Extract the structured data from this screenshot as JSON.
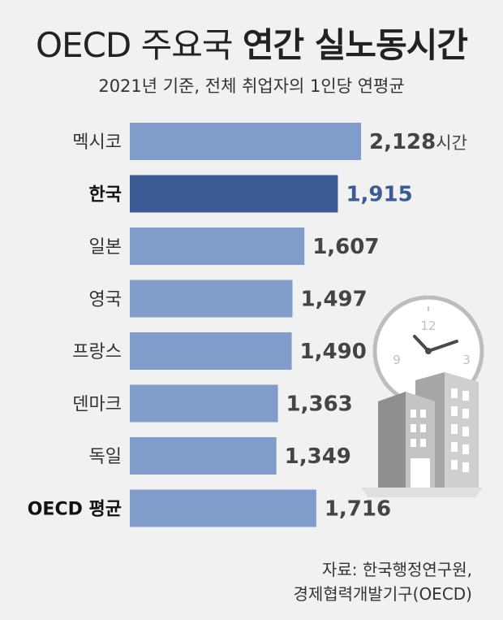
{
  "title_light": "OECD 주요국",
  "title_bold": "연간 실노동시간",
  "subtitle": "2021년 기준, 전체 취업자의 1인당 연평균",
  "source_line1": "자료: 한국행정연구원,",
  "source_line2": "경제협력개발기구(OECD)",
  "colors": {
    "bar": "#7f9ccb",
    "highlight_bar": "#3c5a94",
    "highlight_text": "#3c5a94",
    "label": "#333333",
    "value": "#444444"
  },
  "chart_data": {
    "type": "bar",
    "orientation": "horizontal",
    "categories": [
      "멕시코",
      "한국",
      "일본",
      "영국",
      "프랑스",
      "덴마크",
      "독일",
      "OECD 평균"
    ],
    "values": [
      2128,
      1915,
      1607,
      1497,
      1490,
      1363,
      1349,
      1716
    ],
    "value_labels": [
      "2,128",
      "1,915",
      "1,607",
      "1,497",
      "1,490",
      "1,363",
      "1,349",
      "1,716"
    ],
    "first_value_unit": "시간",
    "highlight_index": 1,
    "bold_category_indices": [
      1,
      7
    ]
  }
}
